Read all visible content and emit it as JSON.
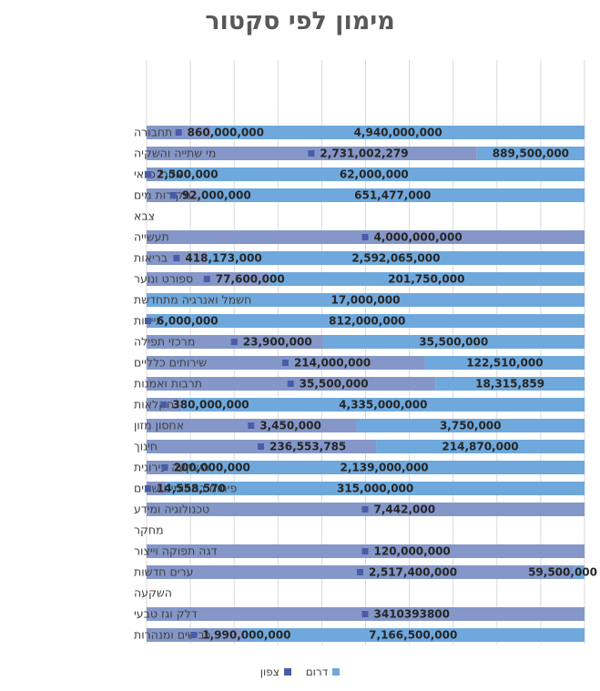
{
  "colors": {
    "south": "#6fa8dc",
    "north": "#8497c8",
    "north_marker": "#4a5ca8",
    "grid": "#d9d9d9"
  },
  "chart_data": {
    "type": "bar",
    "orientation": "horizontal",
    "stacking": "percent",
    "title": "מימון לפי סקטור",
    "categories": [
      "תחבורה",
      "מי שתייה והשקיה",
      "אזורי פנאי",
      "מקורות מים",
      "צבא",
      "תעשייה",
      "בריאות",
      "ספורט ונוער",
      "חשמל ואנרגיה מתחדשת",
      "תיירות",
      "מרכזי תפילה",
      "שירותים כלליים",
      "תרבות ואמנות",
      "חקלאות",
      "אחסון מזון",
      "חינוך",
      "השקעה עירונית",
      "פיתוח בתחומים שונים",
      "טכנולוגיה ומידע",
      "מחקר",
      "דגה תפוקה וייצור",
      "ערים חדשות",
      "השקעה",
      "דלק וגז טבעי",
      "כבישים ומנהרות"
    ],
    "series": [
      {
        "name": "צפון",
        "key": "north",
        "values": [
          860000000,
          2731002279,
          2500000,
          92000000,
          null,
          4000000000,
          418173000,
          77600000,
          null,
          6000000,
          23900000,
          214000000,
          35500000,
          380000000,
          3450000,
          236553785,
          200000000,
          14558570,
          7442000,
          null,
          120000000,
          2517400000,
          null,
          3410393800,
          1990000000
        ],
        "labels": [
          "860,000,000",
          "2,731,002,279",
          "2,500,000",
          "92,000,000",
          "",
          "4,000,000,000",
          "418,173,000",
          "77,600,000",
          "",
          "6,000,000",
          "23,900,000",
          "214,000,000",
          "35,500,000",
          "380,000,000",
          "3,450,000",
          "236,553,785",
          "200,000,000",
          "14,558,570",
          "7,442,000",
          "",
          "120,000,000",
          "2,517,400,000",
          "",
          "3410393800",
          "1,990,000,000"
        ]
      },
      {
        "name": "דרום",
        "key": "south",
        "values": [
          4940000000,
          889500000,
          62000000,
          651477000,
          null,
          null,
          2592065000,
          201750000,
          17000000,
          812000000,
          35500000,
          122510000,
          18315859,
          4335000000,
          3750000,
          214870000,
          2139000000,
          315000000,
          null,
          null,
          null,
          59500000,
          null,
          null,
          7166500000
        ],
        "labels": [
          "4,940,000,000",
          "889,500,000",
          "62,000,000",
          "651,477,000",
          "",
          "",
          "2,592,065,000",
          "201,750,000",
          "17,000,000",
          "812,000,000",
          "35,500,000",
          "122,510,000",
          "18,315,859",
          "4,335,000,000",
          "3,750,000",
          "214,870,000",
          "2,139,000,000",
          "315,000,000",
          "",
          "",
          "",
          "59,500,000",
          "",
          "",
          "7,166,500,000"
        ]
      }
    ],
    "xlim": [
      0,
      1
    ],
    "grid": true,
    "legend_position": "bottom"
  }
}
